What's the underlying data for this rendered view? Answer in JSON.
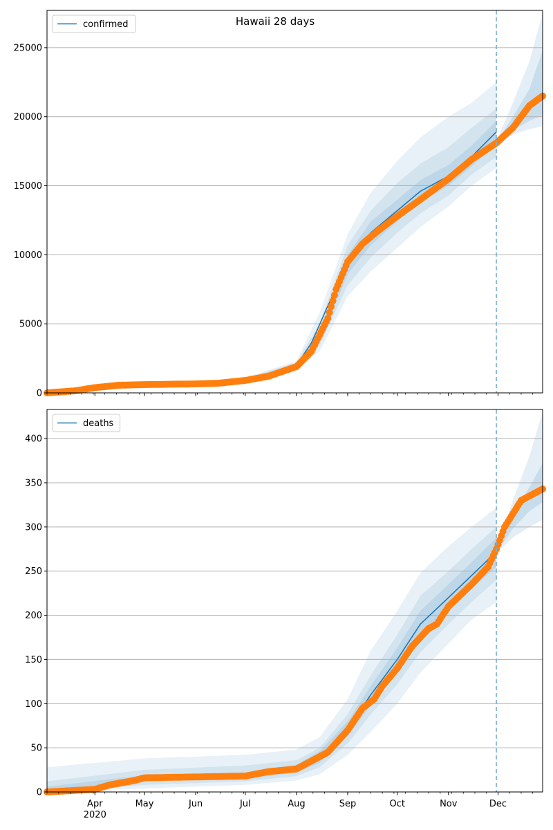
{
  "figure": {
    "title": "Hawaii 28 days"
  },
  "x_axis": {
    "ticks": [
      {
        "date": "2020-04-01",
        "label": "Apr",
        "sublabel": "2020"
      },
      {
        "date": "2020-05-01",
        "label": "May"
      },
      {
        "date": "2020-06-01",
        "label": "Jun"
      },
      {
        "date": "2020-07-01",
        "label": "Jul"
      },
      {
        "date": "2020-08-01",
        "label": "Aug"
      },
      {
        "date": "2020-09-01",
        "label": "Sep"
      },
      {
        "date": "2020-10-01",
        "label": "Oct"
      },
      {
        "date": "2020-11-01",
        "label": "Nov"
      },
      {
        "date": "2020-12-01",
        "label": "Dec"
      }
    ],
    "range": [
      "2020-03-03",
      "2020-12-28"
    ],
    "forecast_start": "2020-11-30"
  },
  "colors": {
    "model_line": "#1f77b4",
    "observed": "#ff7f0e",
    "band": "#1f77b4",
    "grid": "#b0b0b0",
    "forecast_line": "#7fb0d8"
  },
  "chart_data": [
    {
      "type": "line",
      "legend": [
        "confirmed"
      ],
      "legend_placement": "top-left",
      "grid": "horizontal",
      "ylim": [
        0,
        27700
      ],
      "yticks": [
        0,
        5000,
        10000,
        15000,
        20000,
        25000
      ],
      "series": [
        {
          "name": "confirmed",
          "role": "model",
          "x": [
            "2020-03-03",
            "2020-03-15",
            "2020-04-01",
            "2020-05-01",
            "2020-06-01",
            "2020-07-01",
            "2020-07-15",
            "2020-08-01",
            "2020-08-10",
            "2020-08-20",
            "2020-09-01",
            "2020-09-15",
            "2020-10-01",
            "2020-10-15",
            "2020-11-01",
            "2020-11-15",
            "2020-11-30"
          ],
          "y": [
            0,
            50,
            350,
            600,
            650,
            950,
            1300,
            2000,
            3600,
            6300,
            9400,
            11600,
            13200,
            14600,
            15700,
            17100,
            18900
          ]
        },
        {
          "name": "confirmed observed",
          "role": "observed",
          "x": [
            "2020-03-03",
            "2020-03-20",
            "2020-04-01",
            "2020-04-15",
            "2020-05-01",
            "2020-06-01",
            "2020-06-15",
            "2020-07-01",
            "2020-07-15",
            "2020-08-01",
            "2020-08-10",
            "2020-08-20",
            "2020-08-25",
            "2020-09-01",
            "2020-09-10",
            "2020-09-20",
            "2020-10-01",
            "2020-10-15",
            "2020-11-01",
            "2020-11-15",
            "2020-11-30",
            "2020-12-10",
            "2020-12-20",
            "2020-12-28"
          ],
          "y": [
            0,
            150,
            380,
            550,
            600,
            650,
            700,
            900,
            1200,
            1900,
            3000,
            5400,
            7500,
            9500,
            10800,
            11800,
            12800,
            14000,
            15500,
            16900,
            18100,
            19200,
            20800,
            21500
          ]
        }
      ],
      "bands": [
        {
          "level": "outer",
          "x": [
            "2020-03-03",
            "2020-07-01",
            "2020-08-01",
            "2020-08-15",
            "2020-09-01",
            "2020-09-15",
            "2020-10-01",
            "2020-10-15",
            "2020-11-01",
            "2020-11-15",
            "2020-11-30"
          ],
          "lower": [
            0,
            850,
            1700,
            3000,
            7000,
            8800,
            10500,
            12000,
            13500,
            15000,
            16300
          ],
          "upper": [
            100,
            1100,
            2300,
            5800,
            11500,
            14500,
            16800,
            18500,
            20000,
            21000,
            22500
          ]
        },
        {
          "level": "middle",
          "x": [
            "2020-03-03",
            "2020-07-01",
            "2020-08-01",
            "2020-08-15",
            "2020-09-01",
            "2020-09-15",
            "2020-10-01",
            "2020-10-15",
            "2020-11-01",
            "2020-11-15",
            "2020-11-30"
          ],
          "lower": [
            0,
            880,
            1800,
            3400,
            7800,
            9800,
            11600,
            13000,
            14300,
            15800,
            17100
          ],
          "upper": [
            80,
            1050,
            2200,
            5000,
            10700,
            13200,
            15200,
            16600,
            17800,
            19200,
            20600
          ]
        },
        {
          "level": "inner",
          "x": [
            "2020-03-03",
            "2020-07-01",
            "2020-08-01",
            "2020-08-15",
            "2020-09-01",
            "2020-09-15",
            "2020-10-01",
            "2020-10-15",
            "2020-11-01",
            "2020-11-15",
            "2020-11-30"
          ],
          "lower": [
            0,
            920,
            1900,
            3700,
            8600,
            10700,
            12400,
            13800,
            15000,
            16400,
            18000
          ],
          "upper": [
            60,
            1000,
            2100,
            4500,
            10000,
            12400,
            14000,
            15400,
            16500,
            17900,
            19700
          ]
        },
        {
          "level": "forecast-outer",
          "x": [
            "2020-11-30",
            "2020-12-10",
            "2020-12-20",
            "2020-12-28"
          ],
          "lower": [
            18000,
            18700,
            19100,
            19300
          ],
          "upper": [
            18200,
            21000,
            24000,
            27500
          ]
        },
        {
          "level": "forecast-inner",
          "x": [
            "2020-11-30",
            "2020-12-10",
            "2020-12-20",
            "2020-12-28"
          ],
          "lower": [
            18050,
            19000,
            19700,
            20100
          ],
          "upper": [
            18150,
            20000,
            22000,
            24800
          ]
        }
      ]
    },
    {
      "type": "line",
      "legend": [
        "deaths"
      ],
      "legend_placement": "top-left",
      "grid": "horizontal",
      "ylim": [
        0,
        433
      ],
      "yticks": [
        0,
        50,
        100,
        150,
        200,
        250,
        300,
        350,
        400
      ],
      "series": [
        {
          "name": "deaths",
          "role": "model",
          "x": [
            "2020-03-03",
            "2020-04-01",
            "2020-05-01",
            "2020-06-01",
            "2020-07-01",
            "2020-08-01",
            "2020-08-15",
            "2020-09-01",
            "2020-09-15",
            "2020-10-01",
            "2020-10-15",
            "2020-11-01",
            "2020-11-15",
            "2020-11-30"
          ],
          "y": [
            0,
            4,
            15,
            17,
            18,
            27,
            40,
            72,
            110,
            150,
            190,
            220,
            245,
            272
          ]
        },
        {
          "name": "deaths observed",
          "role": "observed",
          "x": [
            "2020-03-03",
            "2020-04-01",
            "2020-04-10",
            "2020-04-25",
            "2020-05-01",
            "2020-06-01",
            "2020-07-01",
            "2020-07-15",
            "2020-08-01",
            "2020-08-10",
            "2020-08-20",
            "2020-09-01",
            "2020-09-10",
            "2020-09-17",
            "2020-09-22",
            "2020-10-01",
            "2020-10-10",
            "2020-10-20",
            "2020-10-25",
            "2020-11-01",
            "2020-11-15",
            "2020-11-25",
            "2020-11-30",
            "2020-12-05",
            "2020-12-15",
            "2020-12-28"
          ],
          "y": [
            0,
            3,
            8,
            13,
            16,
            17,
            18,
            23,
            26,
            35,
            45,
            70,
            95,
            105,
            120,
            140,
            165,
            185,
            190,
            210,
            235,
            255,
            275,
            300,
            330,
            343
          ]
        }
      ],
      "bands": [
        {
          "level": "outer",
          "x": [
            "2020-03-03",
            "2020-05-01",
            "2020-07-01",
            "2020-08-01",
            "2020-08-15",
            "2020-09-01",
            "2020-09-15",
            "2020-10-01",
            "2020-10-15",
            "2020-11-01",
            "2020-11-15",
            "2020-11-30"
          ],
          "lower": [
            0,
            4,
            8,
            13,
            20,
            42,
            68,
            100,
            135,
            168,
            195,
            215
          ],
          "upper": [
            28,
            38,
            42,
            48,
            62,
            105,
            160,
            205,
            248,
            278,
            300,
            322
          ]
        },
        {
          "level": "middle",
          "x": [
            "2020-03-03",
            "2020-05-01",
            "2020-07-01",
            "2020-08-01",
            "2020-08-15",
            "2020-09-01",
            "2020-09-15",
            "2020-10-01",
            "2020-10-15",
            "2020-11-01",
            "2020-11-15",
            "2020-11-30"
          ],
          "lower": [
            0,
            8,
            12,
            18,
            28,
            55,
            88,
            122,
            158,
            190,
            215,
            240
          ],
          "upper": [
            12,
            25,
            30,
            36,
            50,
            88,
            132,
            178,
            222,
            250,
            275,
            300
          ]
        },
        {
          "level": "inner",
          "x": [
            "2020-03-03",
            "2020-05-01",
            "2020-07-01",
            "2020-08-01",
            "2020-08-15",
            "2020-09-01",
            "2020-09-15",
            "2020-10-01",
            "2020-10-15",
            "2020-11-01",
            "2020-11-15",
            "2020-11-30"
          ],
          "lower": [
            0,
            12,
            15,
            22,
            33,
            63,
            98,
            136,
            175,
            205,
            230,
            255
          ],
          "upper": [
            6,
            19,
            22,
            31,
            46,
            80,
            120,
            163,
            205,
            235,
            260,
            288
          ]
        },
        {
          "level": "forecast-outer",
          "x": [
            "2020-11-30",
            "2020-12-10",
            "2020-12-20",
            "2020-12-28"
          ],
          "lower": [
            270,
            288,
            300,
            308
          ],
          "upper": [
            275,
            330,
            380,
            430
          ]
        },
        {
          "level": "forecast-inner",
          "x": [
            "2020-11-30",
            "2020-12-10",
            "2020-12-20",
            "2020-12-28"
          ],
          "lower": [
            271,
            298,
            318,
            328
          ],
          "upper": [
            274,
            315,
            345,
            372
          ]
        }
      ]
    }
  ]
}
